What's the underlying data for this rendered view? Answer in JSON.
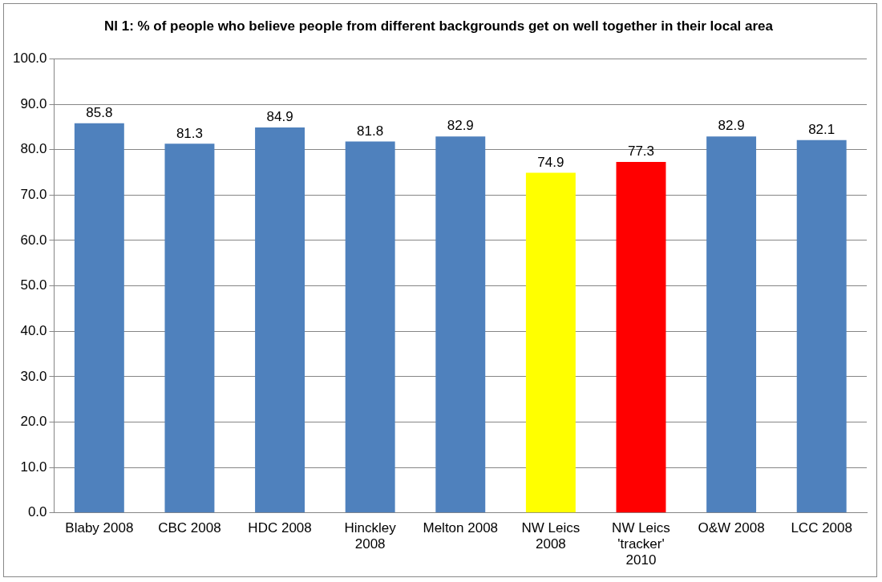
{
  "chart_data": {
    "type": "bar",
    "title": "NI 1: % of people who believe people from different backgrounds get on well together in their local area",
    "categories": [
      "Blaby 2008",
      "CBC 2008",
      "HDC 2008",
      "Hinckley 2008",
      "Melton 2008",
      "NW Leics 2008",
      "NW Leics 'tracker' 2010",
      "O&W 2008",
      "LCC 2008"
    ],
    "values": [
      85.8,
      81.3,
      84.9,
      81.8,
      82.9,
      74.9,
      77.3,
      82.9,
      82.1
    ],
    "colors": [
      "#4f81bd",
      "#4f81bd",
      "#4f81bd",
      "#4f81bd",
      "#4f81bd",
      "#ffff00",
      "#ff0000",
      "#4f81bd",
      "#4f81bd"
    ],
    "ylim": [
      0,
      100
    ],
    "yticks": [
      {
        "value": 0,
        "label": "0.0"
      },
      {
        "value": 10,
        "label": "10.0"
      },
      {
        "value": 20,
        "label": "20.0"
      },
      {
        "value": 30,
        "label": "30.0"
      },
      {
        "value": 40,
        "label": "40.0"
      },
      {
        "value": 50,
        "label": "50.0"
      },
      {
        "value": 60,
        "label": "60.0"
      },
      {
        "value": 70,
        "label": "70.0"
      },
      {
        "value": 80,
        "label": "80.0"
      },
      {
        "value": 90,
        "label": "90.0"
      },
      {
        "value": 100,
        "label": "100.0"
      }
    ],
    "grid": "y",
    "legend": false,
    "data_labels": true
  }
}
